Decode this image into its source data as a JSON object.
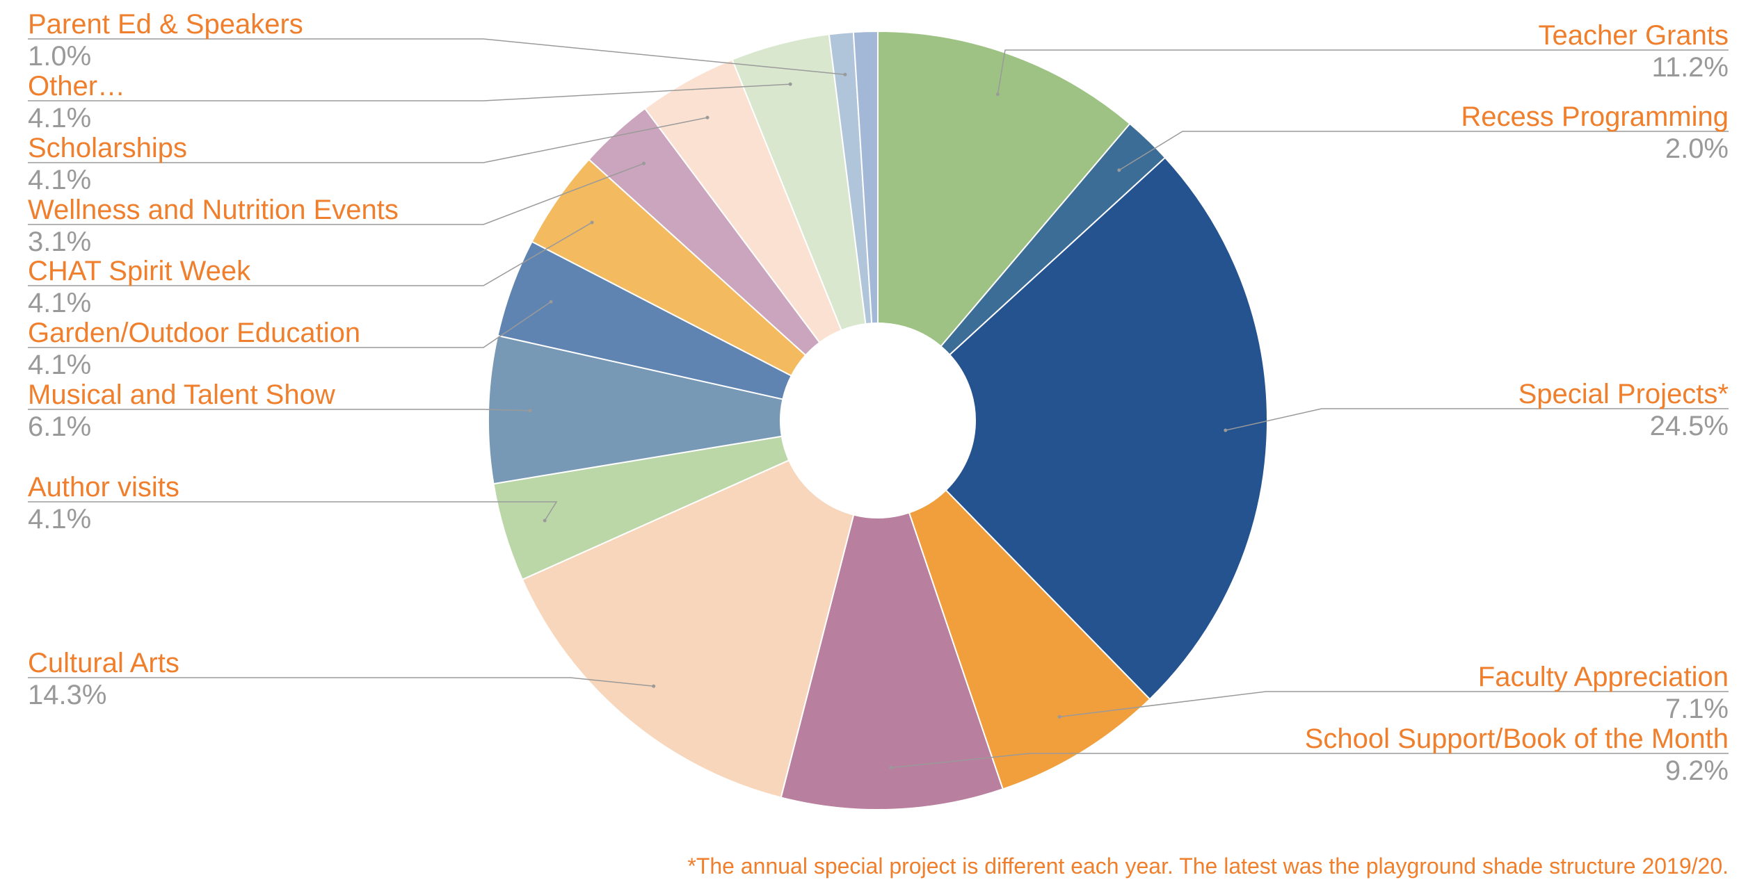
{
  "chart_data": {
    "type": "pie",
    "donut": true,
    "start_angle_deg": 0,
    "direction": "clockwise",
    "slices": [
      {
        "label": "Teacher Grants",
        "value": 11.2,
        "value_label": "11.2%",
        "color": "#9dc283"
      },
      {
        "label": "Recess Programming",
        "value": 2.0,
        "value_label": "2.0%",
        "color": "#3c6d97"
      },
      {
        "label": "Special Projects*",
        "value": 24.5,
        "value_label": "24.5%",
        "color": "#24538f"
      },
      {
        "label": "Faculty Appreciation",
        "value": 7.1,
        "value_label": "7.1%",
        "color": "#f19f3c"
      },
      {
        "label": "School Support/Book of the Month",
        "value": 9.2,
        "value_label": "9.2%",
        "color": "#b87f9e"
      },
      {
        "label": "Cultural Arts",
        "value": 14.3,
        "value_label": "14.3%",
        "color": "#f7d6bb"
      },
      {
        "label": "Author visits",
        "value": 4.1,
        "value_label": "4.1%",
        "color": "#bbd7a8"
      },
      {
        "label": "Musical and Talent Show",
        "value": 6.1,
        "value_label": "6.1%",
        "color": "#7799b5"
      },
      {
        "label": "Garden/Outdoor Education",
        "value": 4.1,
        "value_label": "4.1%",
        "color": "#5f84b1"
      },
      {
        "label": "CHAT Spirit Week",
        "value": 4.1,
        "value_label": "4.1%",
        "color": "#f3ba5f"
      },
      {
        "label": "Wellness and Nutrition Events",
        "value": 3.1,
        "value_label": "3.1%",
        "color": "#cba5bd"
      },
      {
        "label": "Scholarships",
        "value": 4.1,
        "value_label": "4.1%",
        "color": "#fae1d1"
      },
      {
        "label": "Other…",
        "value": 4.1,
        "value_label": "4.1%",
        "color": "#dae7cf"
      },
      {
        "label": "Parent Ed & Speakers",
        "value": 1.0,
        "value_label": "1.0%",
        "color": "#b1c5da"
      },
      {
        "label": "",
        "value": 1.0,
        "value_label": "",
        "color": "#a3b8d6"
      }
    ],
    "footnote": "*The annual special project is different each year. The latest was the playground shade structure 2019/20.",
    "colors": {
      "label_text": "#ef7f2c",
      "value_text": "#999999",
      "leader_line": "#9a9a9a"
    }
  }
}
